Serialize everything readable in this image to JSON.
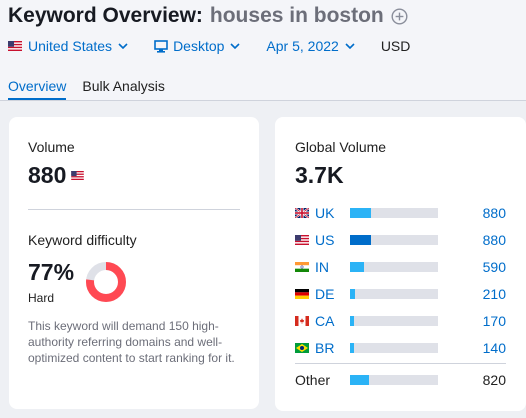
{
  "header": {
    "title": "Keyword Overview:",
    "keyword": "houses in boston",
    "filters": {
      "database": "United States",
      "device": "Desktop",
      "date": "Apr 5, 2022",
      "currency": "USD"
    },
    "tabs": [
      {
        "label": "Overview",
        "active": true
      },
      {
        "label": "Bulk Analysis",
        "active": false
      }
    ]
  },
  "volume_card": {
    "volume_label": "Volume",
    "volume_value": "880",
    "kd_label": "Keyword difficulty",
    "kd_value": "77%",
    "kd_level": "Hard",
    "kd_percent": 77,
    "kd_color": "#ff4953",
    "kd_note": "This keyword will demand 150 high-authority referring domains and well-optimized content to start ranking for it."
  },
  "global_card": {
    "label": "Global Volume",
    "value": "3.7K",
    "rows": [
      {
        "code": "UK",
        "flag": "uk-flag",
        "value": "880",
        "share": 0.24,
        "color": "#2bb3f6"
      },
      {
        "code": "US",
        "flag": "us-flag",
        "value": "880",
        "share": 0.24,
        "color": "#006dca"
      },
      {
        "code": "IN",
        "flag": "in-flag",
        "value": "590",
        "share": 0.16,
        "color": "#2bb3f6"
      },
      {
        "code": "DE",
        "flag": "de-flag",
        "value": "210",
        "share": 0.06,
        "color": "#2bb3f6"
      },
      {
        "code": "CA",
        "flag": "ca-flag",
        "value": "170",
        "share": 0.05,
        "color": "#2bb3f6"
      },
      {
        "code": "BR",
        "flag": "br-flag",
        "value": "140",
        "share": 0.04,
        "color": "#2bb3f6"
      }
    ],
    "other": {
      "label": "Other",
      "value": "820",
      "share": 0.22,
      "color": "#2bb3f6"
    }
  }
}
